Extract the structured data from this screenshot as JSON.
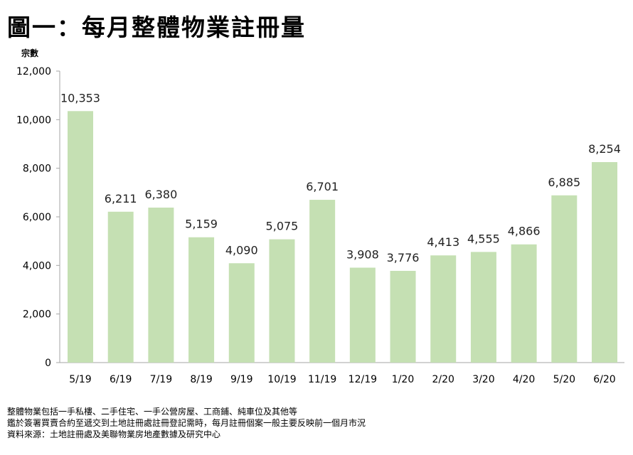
{
  "chart_data": {
    "type": "bar",
    "title": "圖一：每月整體物業註冊量",
    "xlabel": "",
    "ylabel": "宗數",
    "ylim": [
      0,
      12000
    ],
    "yticks": [
      0,
      2000,
      4000,
      6000,
      8000,
      10000,
      12000
    ],
    "ytick_labels": [
      "0",
      "2,000",
      "4,000",
      "6,000",
      "8,000",
      "10,000",
      "12,000"
    ],
    "categories": [
      "5/19",
      "6/19",
      "7/19",
      "8/19",
      "9/19",
      "10/19",
      "11/19",
      "12/19",
      "1/20",
      "2/20",
      "3/20",
      "4/20",
      "5/20",
      "6/20"
    ],
    "values": [
      10353,
      6211,
      6380,
      5159,
      4090,
      5075,
      6701,
      3908,
      3776,
      4413,
      4555,
      4866,
      6885,
      8254
    ],
    "value_labels": [
      "10,353",
      "6,211",
      "6,380",
      "5,159",
      "4,090",
      "5,075",
      "6,701",
      "3,908",
      "3,776",
      "4,413",
      "4,555",
      "4,866",
      "6,885",
      "8,254"
    ],
    "grid": false,
    "bar_color": "#c5e0b3"
  },
  "notes": [
    "整體物業包括一手私樓、二手住宅、一手公營房屋、工商鋪、純車位及其他等",
    "鑑於簽署買賣合約至遞交到土地註冊處註冊登記需時，每月註冊個案一般主要反映前一個月市況",
    "資料來源：土地註冊處及美聯物業房地產數據及研究中心"
  ]
}
